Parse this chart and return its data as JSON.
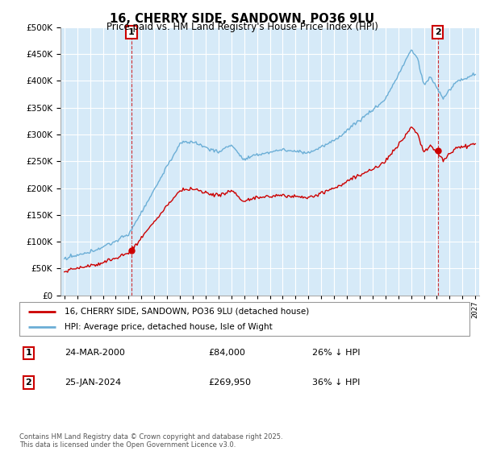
{
  "title": "16, CHERRY SIDE, SANDOWN, PO36 9LU",
  "subtitle": "Price paid vs. HM Land Registry's House Price Index (HPI)",
  "legend_line1": "16, CHERRY SIDE, SANDOWN, PO36 9LU (detached house)",
  "legend_line2": "HPI: Average price, detached house, Isle of Wight",
  "annotation1_date": "24-MAR-2000",
  "annotation1_price": "£84,000",
  "annotation1_hpi": "26% ↓ HPI",
  "annotation2_date": "25-JAN-2024",
  "annotation2_price": "£269,950",
  "annotation2_hpi": "36% ↓ HPI",
  "footer": "Contains HM Land Registry data © Crown copyright and database right 2025.\nThis data is licensed under the Open Government Licence v3.0.",
  "hpi_color": "#6baed6",
  "hpi_fill_color": "#d6eaf8",
  "price_color": "#cc0000",
  "annotation_color": "#cc0000",
  "background_color": "#ffffff",
  "grid_color": "#cccccc",
  "ylim": [
    0,
    500000
  ],
  "yticks": [
    0,
    50000,
    100000,
    150000,
    200000,
    250000,
    300000,
    350000,
    400000,
    450000,
    500000
  ],
  "sale1_year": 2000.23,
  "sale1_price": 84000,
  "sale2_year": 2024.07,
  "sale2_price": 269950
}
